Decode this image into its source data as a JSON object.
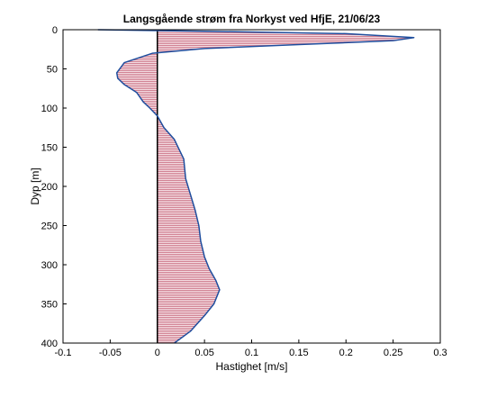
{
  "chart_data": {
    "type": "area",
    "title": "Langsgående strøm fra Norkyst ved HfjE, 21/06/23",
    "xlabel": "Hastighet [m/s]",
    "ylabel": "Dyp [m]",
    "xlim": [
      -0.1,
      0.3
    ],
    "ylim": [
      0,
      400
    ],
    "y_reversed": true,
    "grid": false,
    "xticks": [
      -0.1,
      -0.05,
      0,
      0.05,
      0.1,
      0.15,
      0.2,
      0.25,
      0.3
    ],
    "xtick_labels": [
      "-0.1",
      "-0.05",
      "0",
      "0.05",
      "0.1",
      "0.15",
      "0.2",
      "0.25",
      "0.3"
    ],
    "yticks": [
      0,
      50,
      100,
      150,
      200,
      250,
      300,
      350,
      400
    ],
    "ytick_labels": [
      "0",
      "50",
      "100",
      "150",
      "200",
      "250",
      "300",
      "350",
      "400"
    ],
    "zero_line": 0,
    "series": [
      {
        "x": [
          -0.063,
          0.05,
          0.2,
          0.272,
          0.25,
          0.15,
          0.05,
          -0.005,
          -0.035,
          -0.043,
          -0.042,
          -0.035,
          -0.022,
          -0.015,
          -0.008,
          0.0,
          0.007,
          0.018,
          0.028,
          0.03,
          0.035,
          0.04,
          0.044,
          0.046,
          0.05,
          0.055,
          0.062,
          0.066,
          0.06,
          0.05,
          0.035,
          0.018
        ],
        "y": [
          0,
          2,
          5,
          10,
          14,
          19,
          24,
          30,
          42,
          55,
          62,
          70,
          80,
          92,
          100,
          110,
          125,
          140,
          165,
          190,
          210,
          230,
          250,
          270,
          290,
          305,
          320,
          332,
          350,
          365,
          385,
          400
        ]
      }
    ],
    "colors": {
      "line": "#1f4e9e",
      "fill": "#d98c9a",
      "zero_line": "#000000"
    }
  }
}
